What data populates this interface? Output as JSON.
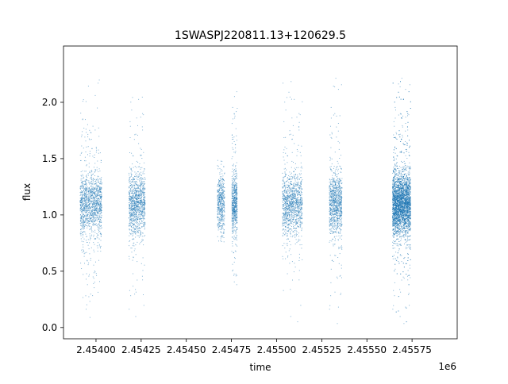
{
  "chart_data": {
    "type": "scatter",
    "title": "1SWASPJ220811.13+120629.5",
    "xlabel": "time",
    "ylabel": "flux",
    "x_offset_label": "1e6",
    "xlim": [
      2.45382,
      2.456
    ],
    "ylim": [
      -0.1,
      2.5
    ],
    "x_ticks": [
      {
        "value": 2.454,
        "label": "2.45400"
      },
      {
        "value": 2.45425,
        "label": "2.45425"
      },
      {
        "value": 2.4545,
        "label": "2.45450"
      },
      {
        "value": 2.45475,
        "label": "2.45475"
      },
      {
        "value": 2.455,
        "label": "2.45500"
      },
      {
        "value": 2.45525,
        "label": "2.45525"
      },
      {
        "value": 2.4555,
        "label": "2.45550"
      },
      {
        "value": 2.45575,
        "label": "2.45575"
      }
    ],
    "y_ticks": [
      {
        "value": 0.0,
        "label": "0.0"
      },
      {
        "value": 0.5,
        "label": "0.5"
      },
      {
        "value": 1.0,
        "label": "1.0"
      },
      {
        "value": 1.5,
        "label": "1.5"
      },
      {
        "value": 2.0,
        "label": "2.0"
      }
    ],
    "point_color": "#1f77b4",
    "grid": false,
    "clusters": [
      {
        "x_start": 2.45391,
        "x_end": 2.45403,
        "y_center": 1.1,
        "y_min": 0.0,
        "y_max": 2.25,
        "density": 1.0
      },
      {
        "x_start": 2.45418,
        "x_end": 2.45427,
        "y_center": 1.1,
        "y_min": 0.05,
        "y_max": 2.15,
        "density": 0.8
      },
      {
        "x_start": 2.45467,
        "x_end": 2.45471,
        "y_center": 1.1,
        "y_min": 0.75,
        "y_max": 1.5,
        "density": 0.35
      },
      {
        "x_start": 2.45475,
        "x_end": 2.45478,
        "y_center": 1.1,
        "y_min": 0.35,
        "y_max": 2.1,
        "density": 0.45
      },
      {
        "x_start": 2.45503,
        "x_end": 2.45514,
        "y_center": 1.1,
        "y_min": 0.05,
        "y_max": 2.2,
        "density": 0.85
      },
      {
        "x_start": 2.45529,
        "x_end": 2.45536,
        "y_center": 1.1,
        "y_min": 0.0,
        "y_max": 2.25,
        "density": 0.7
      },
      {
        "x_start": 2.45564,
        "x_end": 2.45574,
        "y_center": 1.1,
        "y_min": 0.0,
        "y_max": 2.27,
        "density": 2.6
      }
    ]
  }
}
